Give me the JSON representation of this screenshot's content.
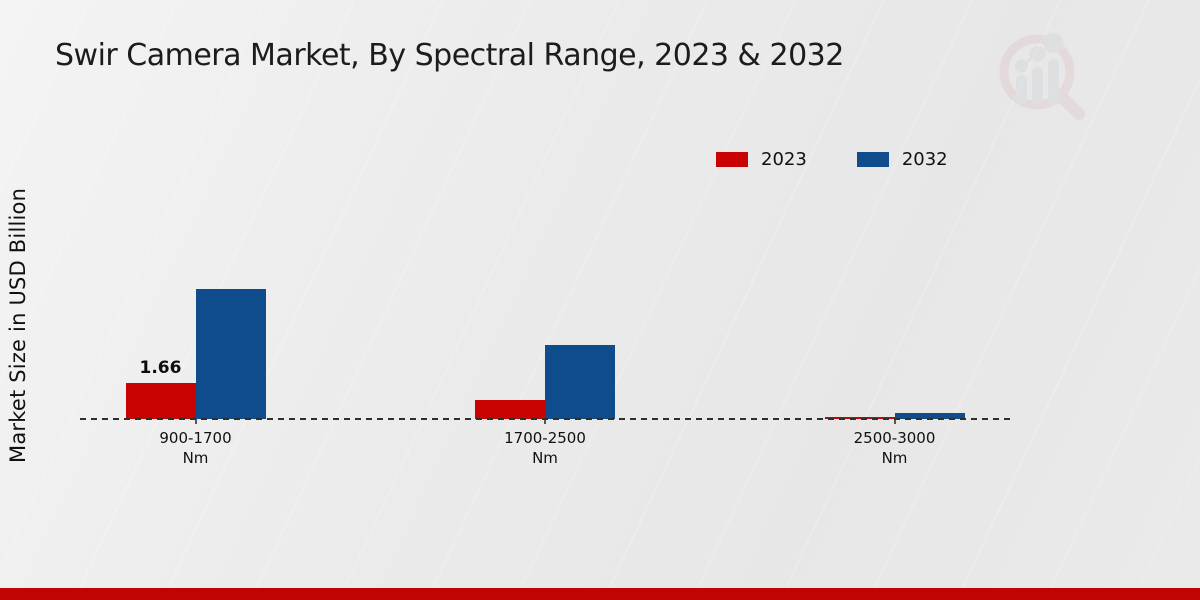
{
  "title": "Swir Camera Market, By Spectral Range, 2023 & 2032",
  "y_axis_label": "Market Size in USD Billion",
  "legend": [
    {
      "label": "2023",
      "color": "#c90202"
    },
    {
      "label": "2032",
      "color": "#0e4c8c"
    }
  ],
  "chart_data": {
    "type": "bar",
    "title": "Swir Camera Market, By Spectral Range, 2023 & 2032",
    "xlabel": "",
    "ylabel": "Market Size in USD Billion",
    "categories": [
      [
        "900-1700",
        "Nm"
      ],
      [
        "1700-2500",
        "Nm"
      ],
      [
        "2500-3000",
        "Nm"
      ]
    ],
    "series": [
      {
        "name": "2023",
        "color": "#c90202",
        "values": [
          1.66,
          0.9,
          0.07
        ],
        "data_labels": [
          "1.66",
          "",
          ""
        ]
      },
      {
        "name": "2032",
        "color": "#0e4c8c",
        "values": [
          6.0,
          3.4,
          0.3
        ],
        "data_labels": [
          "",
          "",
          ""
        ]
      }
    ],
    "ylim": [
      0,
      6.5
    ],
    "grid": false,
    "legend_position": "top-right",
    "baseline_style": "dashed"
  },
  "watermark": {
    "icon": "magnifier-bar-chart-logo",
    "ring_color": "#c9858d",
    "bar_color": "#a9adb8"
  },
  "footer": {
    "bar_color": "#c00404"
  }
}
